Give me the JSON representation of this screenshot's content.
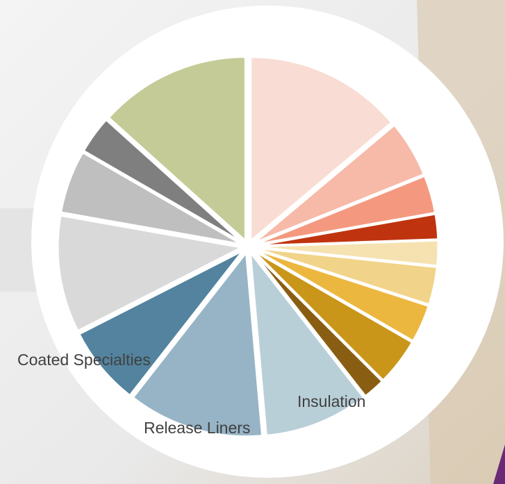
{
  "chart_data": {
    "type": "pie",
    "categories": [
      null,
      null,
      null,
      null,
      null,
      null,
      null,
      null,
      null,
      "Insulation",
      "Release Liners",
      "Coated Specialties",
      null,
      null,
      null,
      null
    ],
    "values": [
      50,
      18,
      12,
      8,
      8,
      12,
      12,
      15,
      7,
      33,
      43,
      25,
      37,
      20,
      12,
      48
    ],
    "colors": [
      "#f9dcd3",
      "#f7baa8",
      "#f4997f",
      "#bf340f",
      "#f5e2b0",
      "#f1d48a",
      "#ecb73f",
      "#c9961a",
      "#8a5e12",
      "#b9cfd8",
      "#96b4c6",
      "#53839e",
      "#d9d9d9",
      "#bfbfbf",
      "#7f7f7f",
      "#c4cb96"
    ]
  }
}
